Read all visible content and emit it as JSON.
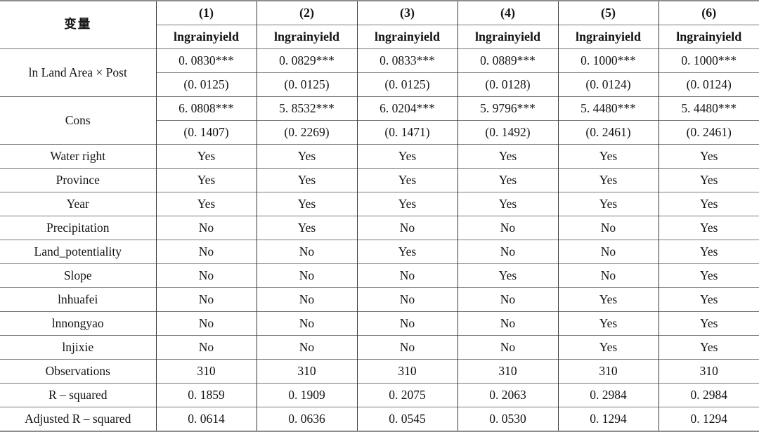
{
  "table": {
    "header": {
      "variable_label": "变量",
      "cols": [
        "(1)",
        "(2)",
        "(3)",
        "(4)",
        "(5)",
        "(6)"
      ],
      "depvars": [
        "lngrainyield",
        "lngrainyield",
        "lngrainyield",
        "lngrainyield",
        "lngrainyield",
        "lngrainyield"
      ]
    },
    "coef_rows": [
      {
        "label": "ln Land Area × Post",
        "coefs": [
          "0. 0830***",
          "0. 0829***",
          "0. 0833***",
          "0. 0889***",
          "0. 1000***",
          "0. 1000***"
        ],
        "ses": [
          "(0. 0125)",
          "(0. 0125)",
          "(0. 0125)",
          "(0. 0128)",
          "(0. 0124)",
          "(0. 0124)"
        ]
      },
      {
        "label": "Cons",
        "coefs": [
          "6. 0808***",
          "5. 8532***",
          "6. 0204***",
          "5. 9796***",
          "5. 4480***",
          "5. 4480***"
        ],
        "ses": [
          "(0. 1407)",
          "(0. 2269)",
          "(0. 1471)",
          "(0. 1492)",
          "(0. 2461)",
          "(0. 2461)"
        ]
      }
    ],
    "rows": [
      {
        "label": "Water right",
        "values": [
          "Yes",
          "Yes",
          "Yes",
          "Yes",
          "Yes",
          "Yes"
        ]
      },
      {
        "label": "Province",
        "values": [
          "Yes",
          "Yes",
          "Yes",
          "Yes",
          "Yes",
          "Yes"
        ]
      },
      {
        "label": "Year",
        "values": [
          "Yes",
          "Yes",
          "Yes",
          "Yes",
          "Yes",
          "Yes"
        ]
      },
      {
        "label": "Precipitation",
        "values": [
          "No",
          "Yes",
          "No",
          "No",
          "No",
          "Yes"
        ]
      },
      {
        "label": "Land_potentiality",
        "values": [
          "No",
          "No",
          "Yes",
          "No",
          "No",
          "Yes"
        ]
      },
      {
        "label": "Slope",
        "values": [
          "No",
          "No",
          "No",
          "Yes",
          "No",
          "Yes"
        ]
      },
      {
        "label": "lnhuafei",
        "values": [
          "No",
          "No",
          "No",
          "No",
          "Yes",
          "Yes"
        ]
      },
      {
        "label": "lnnongyao",
        "values": [
          "No",
          "No",
          "No",
          "No",
          "Yes",
          "Yes"
        ]
      },
      {
        "label": "lnjixie",
        "values": [
          "No",
          "No",
          "No",
          "No",
          "Yes",
          "Yes"
        ]
      },
      {
        "label": "Observations",
        "values": [
          "310",
          "310",
          "310",
          "310",
          "310",
          "310"
        ]
      },
      {
        "label": "R – squared",
        "values": [
          "0. 1859",
          "0. 1909",
          "0. 2075",
          "0. 2063",
          "0. 2984",
          "0. 2984"
        ]
      },
      {
        "label": "Adjusted R – squared",
        "values": [
          "0. 0614",
          "0. 0636",
          "0. 0545",
          "0. 0530",
          "0. 1294",
          "0. 1294"
        ]
      }
    ]
  }
}
